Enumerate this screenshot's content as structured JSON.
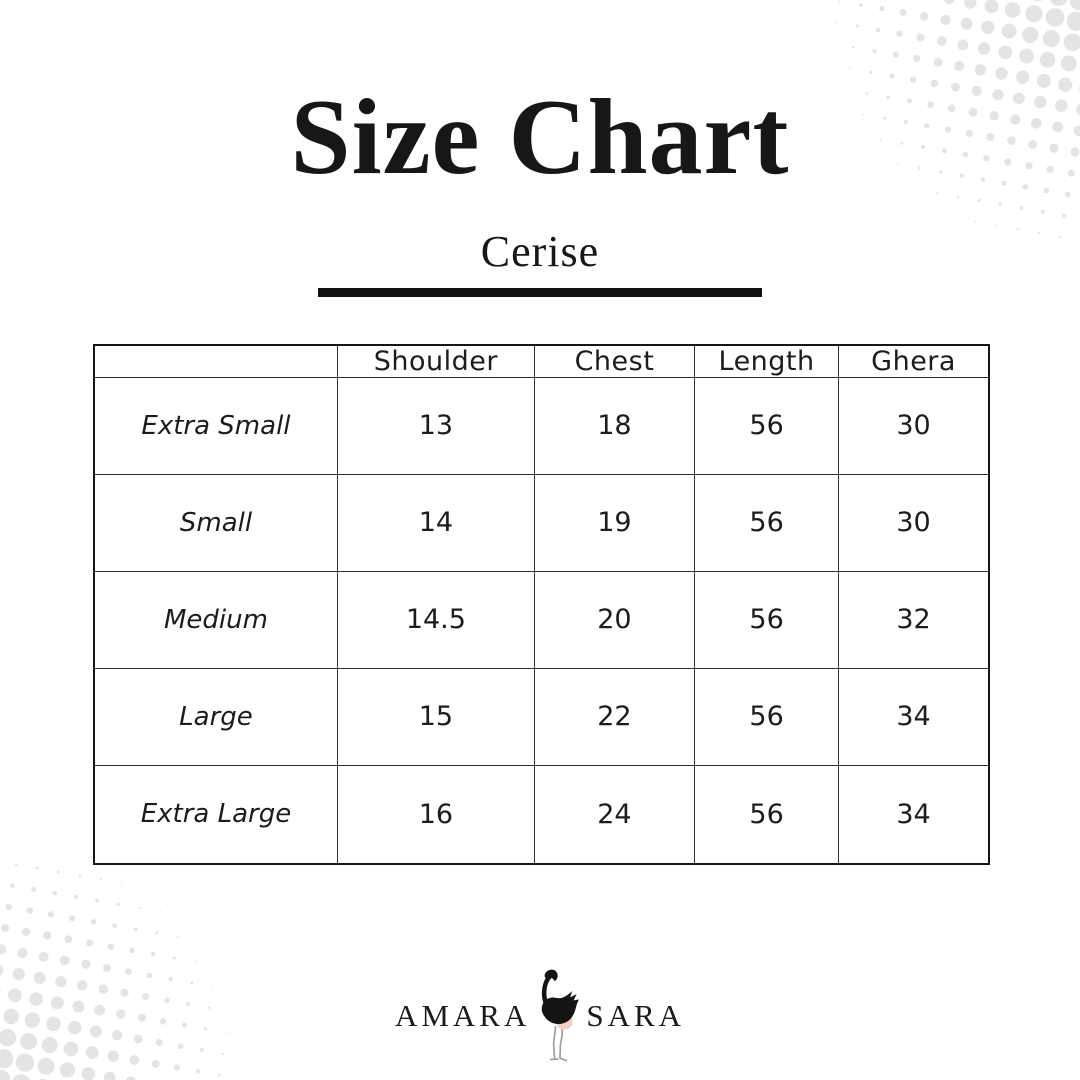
{
  "title": "Size Chart",
  "subtitle": "Cerise",
  "table": {
    "corner_label": "",
    "columns": [
      "Shoulder",
      "Chest",
      "Length",
      "Ghera"
    ],
    "rows": [
      {
        "label": "Extra Small",
        "values": [
          "13",
          "18",
          "56",
          "30"
        ]
      },
      {
        "label": "Small",
        "values": [
          "14",
          "19",
          "56",
          "30"
        ]
      },
      {
        "label": "Medium",
        "values": [
          "14.5",
          "20",
          "56",
          "32"
        ]
      },
      {
        "label": "Large",
        "values": [
          "15",
          "22",
          "56",
          "34"
        ]
      },
      {
        "label": "Extra Large",
        "values": [
          "16",
          "24",
          "56",
          "34"
        ]
      }
    ]
  },
  "brand": {
    "name_left": "AMARA",
    "name_right": "SARA"
  },
  "colors": {
    "background": "#ffffff",
    "ink": "#161616",
    "table_border": "#2e2e2e",
    "divider": "#111111",
    "halftone_dot": "#e4e4e4",
    "flamingo_body": "#141414",
    "flamingo_belly": "#f4cfc2",
    "flamingo_legs": "#9d9d9d"
  }
}
